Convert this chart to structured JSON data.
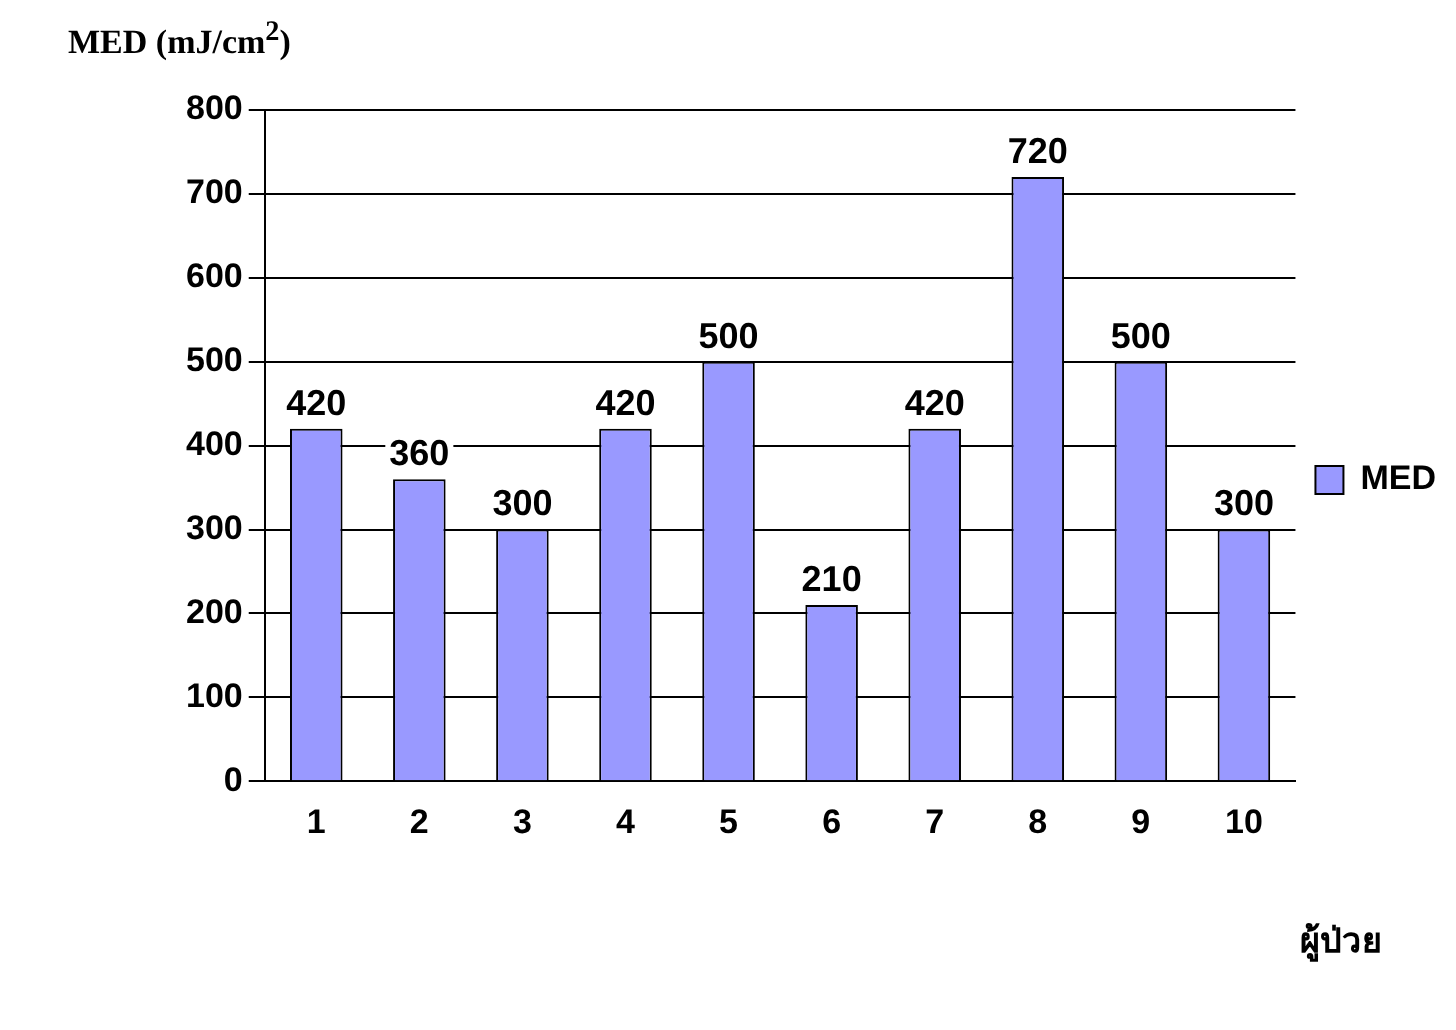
{
  "chart_data": {
    "type": "bar",
    "ylabel": "MED (mJ/cm$^{2}$)",
    "xlabel": "ผู้ป่วย",
    "categories": [
      "1",
      "2",
      "3",
      "4",
      "5",
      "6",
      "7",
      "8",
      "9",
      "10"
    ],
    "series": [
      {
        "name": "MED",
        "color": "#9999ff",
        "values": [
          420,
          360,
          300,
          420,
          500,
          210,
          420,
          720,
          500,
          300
        ]
      }
    ],
    "ylim": [
      0,
      800
    ],
    "yticks": [
      0,
      100,
      200,
      300,
      400,
      500,
      600,
      700,
      800
    ],
    "grid": "y",
    "legend": "right",
    "data_labels": true
  }
}
